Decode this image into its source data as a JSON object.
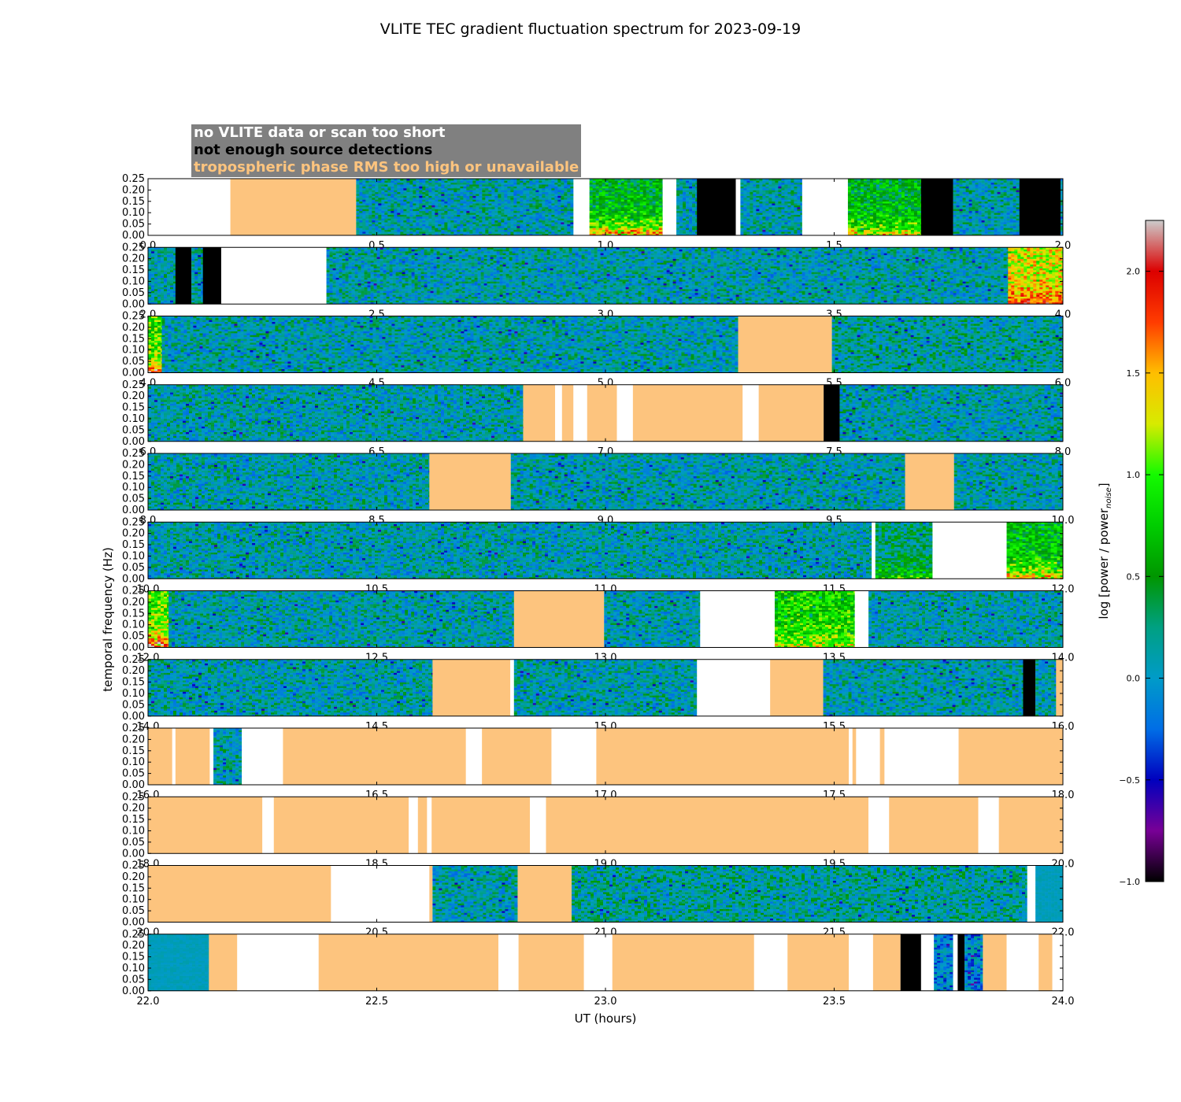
{
  "title": "VLITE TEC gradient fluctuation spectrum for 2023-09-19",
  "xlabel": "UT (hours)",
  "ylabel": "temporal frequency (Hz)",
  "colorbar": {
    "label": "log [power / power",
    "label_sub": "noise",
    "label_close": "]",
    "ticks": [
      "2.0",
      "1.5",
      "1.0",
      "0.5",
      "0.0",
      "−0.5",
      "−1.0"
    ],
    "tick_values": [
      2.0,
      1.5,
      1.0,
      0.5,
      0.0,
      -0.5,
      -1.0
    ],
    "range": [
      -1.0,
      2.25
    ]
  },
  "legend": {
    "nodata": {
      "text": "no VLITE data or scan too short",
      "color": "#ffffff"
    },
    "nodetect": {
      "text": "not enough source detections",
      "color": "#000000"
    },
    "tropo": {
      "text": "tropospheric phase RMS too high or unavailable",
      "color": "#fdc47e"
    },
    "background": "#808080"
  },
  "chart_data": {
    "type": "heatmap",
    "description_units": "x: UT hours; y: temporal frequency Hz; value: log power ratio",
    "ylim": [
      0.0,
      0.25
    ],
    "y_ticks": [
      "0.00",
      "0.05",
      "0.10",
      "0.15",
      "0.20",
      "0.25"
    ],
    "colors": {
      "white": "#ffffff",
      "black": "#000000",
      "tan": "#fdc47e"
    },
    "panels": [
      {
        "xlim": [
          0,
          2
        ],
        "x_ticks": [
          "0.0",
          "0.5",
          "1.0",
          "1.5",
          "2.0"
        ],
        "segments": [
          {
            "s": 0.0,
            "e": 0.18,
            "k": "white"
          },
          {
            "s": 0.18,
            "e": 0.455,
            "k": "tan"
          },
          {
            "s": 0.455,
            "e": 0.93,
            "k": "spec",
            "lv": 0.1,
            "hot": 0
          },
          {
            "s": 0.93,
            "e": 0.965,
            "k": "white"
          },
          {
            "s": 0.965,
            "e": 1.125,
            "k": "spec",
            "lv": 0.55,
            "hot": 1.2
          },
          {
            "s": 1.125,
            "e": 1.155,
            "k": "white"
          },
          {
            "s": 1.155,
            "e": 1.2,
            "k": "spec",
            "lv": 0.1,
            "hot": 0
          },
          {
            "s": 1.2,
            "e": 1.285,
            "k": "black"
          },
          {
            "s": 1.285,
            "e": 1.295,
            "k": "white"
          },
          {
            "s": 1.295,
            "e": 1.43,
            "k": "spec",
            "lv": 0.1,
            "hot": 0
          },
          {
            "s": 1.43,
            "e": 1.53,
            "k": "white"
          },
          {
            "s": 1.53,
            "e": 1.69,
            "k": "spec",
            "lv": 0.55,
            "hot": 0.9
          },
          {
            "s": 1.69,
            "e": 1.76,
            "k": "black"
          },
          {
            "s": 1.76,
            "e": 1.905,
            "k": "spec",
            "lv": 0.1,
            "hot": 0
          },
          {
            "s": 1.905,
            "e": 1.995,
            "k": "black"
          },
          {
            "s": 1.995,
            "e": 2.0,
            "k": "spec",
            "lv": 0.1,
            "hot": 0
          }
        ]
      },
      {
        "xlim": [
          2,
          4
        ],
        "x_ticks": [
          "2.0",
          "2.5",
          "3.0",
          "3.5",
          "4.0"
        ],
        "segments": [
          {
            "s": 2.0,
            "e": 2.06,
            "k": "spec",
            "lv": 0.1,
            "hot": 0
          },
          {
            "s": 2.06,
            "e": 2.095,
            "k": "black"
          },
          {
            "s": 2.095,
            "e": 2.12,
            "k": "spec",
            "lv": 0.1,
            "hot": 0
          },
          {
            "s": 2.12,
            "e": 2.16,
            "k": "black"
          },
          {
            "s": 2.16,
            "e": 2.39,
            "k": "white"
          },
          {
            "s": 2.39,
            "e": 3.88,
            "k": "spec",
            "lv": 0.1,
            "hot": 0
          },
          {
            "s": 3.88,
            "e": 4.0,
            "k": "spec",
            "lv": 1.3,
            "hot": 0.6
          }
        ]
      },
      {
        "xlim": [
          4,
          6
        ],
        "x_ticks": [
          "4.0",
          "4.5",
          "5.0",
          "5.5",
          "6.0"
        ],
        "segments": [
          {
            "s": 4.0,
            "e": 4.03,
            "k": "spec",
            "lv": 0.9,
            "hot": 1.1
          },
          {
            "s": 4.03,
            "e": 5.29,
            "k": "spec",
            "lv": 0.1,
            "hot": 0
          },
          {
            "s": 5.29,
            "e": 5.495,
            "k": "tan"
          },
          {
            "s": 5.495,
            "e": 6.0,
            "k": "spec",
            "lv": 0.15,
            "hot": 0
          }
        ]
      },
      {
        "xlim": [
          6,
          8
        ],
        "x_ticks": [
          "6.0",
          "6.5",
          "7.0",
          "7.5",
          "8.0"
        ],
        "segments": [
          {
            "s": 6.0,
            "e": 6.82,
            "k": "spec",
            "lv": 0.1,
            "hot": 0
          },
          {
            "s": 6.82,
            "e": 6.89,
            "k": "tan"
          },
          {
            "s": 6.89,
            "e": 6.905,
            "k": "white"
          },
          {
            "s": 6.905,
            "e": 6.93,
            "k": "tan"
          },
          {
            "s": 6.93,
            "e": 6.96,
            "k": "white"
          },
          {
            "s": 6.96,
            "e": 7.025,
            "k": "tan"
          },
          {
            "s": 7.025,
            "e": 7.06,
            "k": "white"
          },
          {
            "s": 7.06,
            "e": 7.3,
            "k": "tan"
          },
          {
            "s": 7.3,
            "e": 7.335,
            "k": "white"
          },
          {
            "s": 7.335,
            "e": 7.477,
            "k": "tan"
          },
          {
            "s": 7.477,
            "e": 7.512,
            "k": "black"
          },
          {
            "s": 7.512,
            "e": 8.0,
            "k": "spec",
            "lv": 0.1,
            "hot": 0
          }
        ]
      },
      {
        "xlim": [
          8,
          10
        ],
        "x_ticks": [
          "8.0",
          "8.5",
          "9.0",
          "9.5",
          "10.0"
        ],
        "segments": [
          {
            "s": 8.0,
            "e": 8.615,
            "k": "spec",
            "lv": 0.1,
            "hot": 0
          },
          {
            "s": 8.615,
            "e": 8.793,
            "k": "tan"
          },
          {
            "s": 8.793,
            "e": 9.655,
            "k": "spec",
            "lv": 0.1,
            "hot": 0
          },
          {
            "s": 9.655,
            "e": 9.762,
            "k": "tan"
          },
          {
            "s": 9.762,
            "e": 10.0,
            "k": "spec",
            "lv": 0.1,
            "hot": 0
          }
        ]
      },
      {
        "xlim": [
          10,
          12
        ],
        "x_ticks": [
          "10.0",
          "10.5",
          "11.0",
          "11.5",
          "12.0"
        ],
        "segments": [
          {
            "s": 10.0,
            "e": 11.582,
            "k": "spec",
            "lv": 0.1,
            "hot": 0
          },
          {
            "s": 11.582,
            "e": 11.59,
            "k": "white"
          },
          {
            "s": 11.59,
            "e": 11.715,
            "k": "spec",
            "lv": 0.25,
            "hot": 0.7
          },
          {
            "s": 11.715,
            "e": 11.877,
            "k": "white"
          },
          {
            "s": 11.877,
            "e": 12.0,
            "k": "spec",
            "lv": 0.6,
            "hot": 1.0
          }
        ]
      },
      {
        "xlim": [
          12,
          14
        ],
        "x_ticks": [
          "12.0",
          "12.5",
          "13.0",
          "13.5",
          "14.0"
        ],
        "segments": [
          {
            "s": 12.0,
            "e": 12.045,
            "k": "spec",
            "lv": 1.0,
            "hot": 1.2
          },
          {
            "s": 12.045,
            "e": 12.8,
            "k": "spec",
            "lv": 0.1,
            "hot": 0
          },
          {
            "s": 12.8,
            "e": 12.997,
            "k": "tan"
          },
          {
            "s": 12.997,
            "e": 13.207,
            "k": "spec",
            "lv": 0.1,
            "hot": 0
          },
          {
            "s": 13.207,
            "e": 13.37,
            "k": "white"
          },
          {
            "s": 13.37,
            "e": 13.545,
            "k": "spec",
            "lv": 0.8,
            "hot": 0.5
          },
          {
            "s": 13.545,
            "e": 13.575,
            "k": "white"
          },
          {
            "s": 13.575,
            "e": 14.0,
            "k": "spec",
            "lv": 0.1,
            "hot": 0
          }
        ]
      },
      {
        "xlim": [
          14,
          16
        ],
        "x_ticks": [
          "14.0",
          "14.5",
          "15.0",
          "15.5",
          "16.0"
        ],
        "segments": [
          {
            "s": 14.0,
            "e": 14.622,
            "k": "spec",
            "lv": 0.1,
            "hot": 0
          },
          {
            "s": 14.622,
            "e": 14.792,
            "k": "tan"
          },
          {
            "s": 14.792,
            "e": 14.8,
            "k": "white"
          },
          {
            "s": 14.8,
            "e": 15.2,
            "k": "spec",
            "lv": 0.1,
            "hot": 0
          },
          {
            "s": 15.2,
            "e": 15.36,
            "k": "white"
          },
          {
            "s": 15.36,
            "e": 15.476,
            "k": "tan"
          },
          {
            "s": 15.476,
            "e": 15.913,
            "k": "spec",
            "lv": 0.1,
            "hot": 0
          },
          {
            "s": 15.913,
            "e": 15.94,
            "k": "black"
          },
          {
            "s": 15.94,
            "e": 15.985,
            "k": "spec",
            "lv": 0.1,
            "hot": 0
          },
          {
            "s": 15.985,
            "e": 16.0,
            "k": "tan"
          }
        ]
      },
      {
        "xlim": [
          16,
          18
        ],
        "x_ticks": [
          "16.0",
          "16.5",
          "17.0",
          "17.5",
          "18.0"
        ],
        "segments": [
          {
            "s": 16.0,
            "e": 16.053,
            "k": "tan"
          },
          {
            "s": 16.053,
            "e": 16.06,
            "k": "white"
          },
          {
            "s": 16.06,
            "e": 16.135,
            "k": "tan"
          },
          {
            "s": 16.135,
            "e": 16.143,
            "k": "white"
          },
          {
            "s": 16.143,
            "e": 16.205,
            "k": "spec",
            "lv": 0.1,
            "hot": 0
          },
          {
            "s": 16.205,
            "e": 16.295,
            "k": "white"
          },
          {
            "s": 16.295,
            "e": 16.695,
            "k": "tan"
          },
          {
            "s": 16.695,
            "e": 16.73,
            "k": "white"
          },
          {
            "s": 16.73,
            "e": 16.882,
            "k": "tan"
          },
          {
            "s": 16.882,
            "e": 16.98,
            "k": "white"
          },
          {
            "s": 16.98,
            "e": 17.532,
            "k": "tan"
          },
          {
            "s": 17.532,
            "e": 17.54,
            "k": "white"
          },
          {
            "s": 17.54,
            "e": 17.548,
            "k": "tan"
          },
          {
            "s": 17.548,
            "e": 17.6,
            "k": "white"
          },
          {
            "s": 17.6,
            "e": 17.61,
            "k": "tan"
          },
          {
            "s": 17.61,
            "e": 17.772,
            "k": "white"
          },
          {
            "s": 17.772,
            "e": 18.0,
            "k": "tan"
          }
        ]
      },
      {
        "xlim": [
          18,
          20
        ],
        "x_ticks": [
          "18.0",
          "18.5",
          "19.0",
          "19.5",
          "20.0"
        ],
        "segments": [
          {
            "s": 18.0,
            "e": 18.25,
            "k": "tan"
          },
          {
            "s": 18.25,
            "e": 18.275,
            "k": "white"
          },
          {
            "s": 18.275,
            "e": 18.57,
            "k": "tan"
          },
          {
            "s": 18.57,
            "e": 18.59,
            "k": "white"
          },
          {
            "s": 18.59,
            "e": 18.61,
            "k": "tan"
          },
          {
            "s": 18.61,
            "e": 18.62,
            "k": "white"
          },
          {
            "s": 18.62,
            "e": 18.835,
            "k": "tan"
          },
          {
            "s": 18.835,
            "e": 18.87,
            "k": "white"
          },
          {
            "s": 18.87,
            "e": 19.575,
            "k": "tan"
          },
          {
            "s": 19.575,
            "e": 19.62,
            "k": "white"
          },
          {
            "s": 19.62,
            "e": 19.815,
            "k": "tan"
          },
          {
            "s": 19.815,
            "e": 19.86,
            "k": "white"
          },
          {
            "s": 19.86,
            "e": 20.0,
            "k": "tan"
          }
        ]
      },
      {
        "xlim": [
          20,
          22
        ],
        "x_ticks": [
          "20.0",
          "20.5",
          "21.0",
          "21.5",
          "22.0"
        ],
        "segments": [
          {
            "s": 20.0,
            "e": 20.4,
            "k": "tan"
          },
          {
            "s": 20.4,
            "e": 20.615,
            "k": "white"
          },
          {
            "s": 20.615,
            "e": 20.622,
            "k": "tan"
          },
          {
            "s": 20.622,
            "e": 20.808,
            "k": "spec",
            "lv": 0.1,
            "hot": 0
          },
          {
            "s": 20.808,
            "e": 20.926,
            "k": "tan"
          },
          {
            "s": 20.926,
            "e": 21.922,
            "k": "spec",
            "lv": 0.15,
            "hot": 0
          },
          {
            "s": 21.922,
            "e": 21.94,
            "k": "white"
          },
          {
            "s": 21.94,
            "e": 22.0,
            "k": "flat",
            "lv": 0.05
          }
        ]
      },
      {
        "xlim": [
          22,
          24
        ],
        "x_ticks": [
          "22.0",
          "22.5",
          "23.0",
          "23.5",
          "24.0"
        ],
        "segments": [
          {
            "s": 22.0,
            "e": 22.133,
            "k": "flat",
            "lv": 0.05
          },
          {
            "s": 22.133,
            "e": 22.195,
            "k": "tan"
          },
          {
            "s": 22.195,
            "e": 22.373,
            "k": "white"
          },
          {
            "s": 22.373,
            "e": 22.766,
            "k": "tan"
          },
          {
            "s": 22.766,
            "e": 22.81,
            "k": "white"
          },
          {
            "s": 22.81,
            "e": 22.953,
            "k": "tan"
          },
          {
            "s": 22.953,
            "e": 23.015,
            "k": "white"
          },
          {
            "s": 23.015,
            "e": 23.325,
            "k": "tan"
          },
          {
            "s": 23.325,
            "e": 23.398,
            "k": "white"
          },
          {
            "s": 23.398,
            "e": 23.532,
            "k": "tan"
          },
          {
            "s": 23.532,
            "e": 23.585,
            "k": "white"
          },
          {
            "s": 23.585,
            "e": 23.645,
            "k": "tan"
          },
          {
            "s": 23.645,
            "e": 23.69,
            "k": "black"
          },
          {
            "s": 23.69,
            "e": 23.718,
            "k": "white"
          },
          {
            "s": 23.718,
            "e": 23.76,
            "k": "spec",
            "lv": -0.1,
            "hot": 0
          },
          {
            "s": 23.76,
            "e": 23.77,
            "k": "white"
          },
          {
            "s": 23.77,
            "e": 23.785,
            "k": "black"
          },
          {
            "s": 23.785,
            "e": 23.825,
            "k": "spec",
            "lv": -0.1,
            "hot": 0
          },
          {
            "s": 23.825,
            "e": 23.877,
            "k": "tan"
          },
          {
            "s": 23.877,
            "e": 23.947,
            "k": "white"
          },
          {
            "s": 23.947,
            "e": 23.977,
            "k": "tan"
          },
          {
            "s": 23.977,
            "e": 24.0,
            "k": "white"
          }
        ]
      }
    ]
  }
}
